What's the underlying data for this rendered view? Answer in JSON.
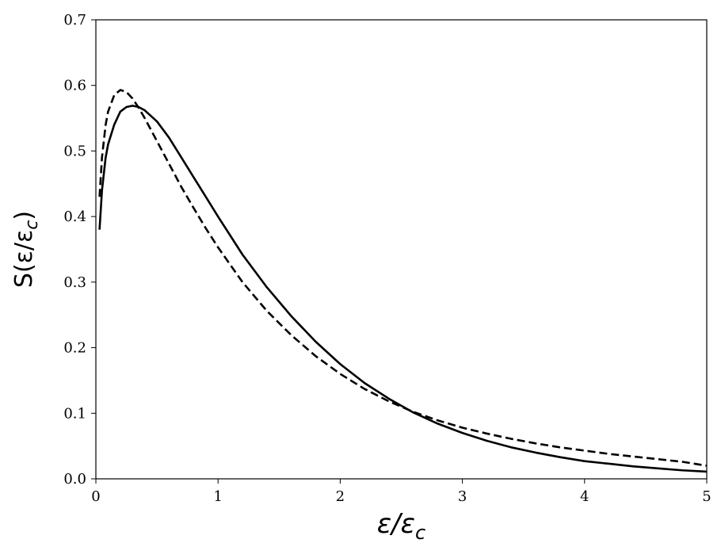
{
  "chart_data": {
    "type": "line",
    "xlabel_main": "ε/ε",
    "xlabel_sub": "c",
    "ylabel_main": "S(ε/ε",
    "ylabel_sub": "c",
    "ylabel_close": ")",
    "xlim": [
      0,
      5
    ],
    "ylim": [
      0,
      0.7
    ],
    "xticks": [
      "0",
      "1",
      "2",
      "3",
      "4",
      "5"
    ],
    "yticks": [
      "0.0",
      "0.1",
      "0.2",
      "0.3",
      "0.4",
      "0.5",
      "0.6",
      "0.7"
    ],
    "grid": false,
    "series": [
      {
        "style": "solid",
        "color": "#000000",
        "x": [
          0.03,
          0.05,
          0.08,
          0.1,
          0.15,
          0.2,
          0.25,
          0.3,
          0.35,
          0.4,
          0.5,
          0.6,
          0.7,
          0.8,
          0.9,
          1.0,
          1.2,
          1.4,
          1.6,
          1.8,
          2.0,
          2.2,
          2.4,
          2.6,
          2.8,
          3.0,
          3.2,
          3.4,
          3.6,
          3.8,
          4.0,
          4.2,
          4.4,
          4.6,
          4.8,
          5.0
        ],
        "y": [
          0.38,
          0.44,
          0.49,
          0.51,
          0.54,
          0.56,
          0.567,
          0.569,
          0.567,
          0.562,
          0.545,
          0.52,
          0.49,
          0.46,
          0.43,
          0.4,
          0.342,
          0.292,
          0.248,
          0.209,
          0.175,
          0.146,
          0.122,
          0.101,
          0.084,
          0.07,
          0.058,
          0.048,
          0.04,
          0.033,
          0.027,
          0.023,
          0.019,
          0.016,
          0.013,
          0.011
        ]
      },
      {
        "style": "dashed",
        "color": "#000000",
        "x": [
          0.03,
          0.05,
          0.08,
          0.1,
          0.15,
          0.2,
          0.25,
          0.3,
          0.35,
          0.4,
          0.5,
          0.6,
          0.7,
          0.8,
          0.9,
          1.0,
          1.2,
          1.4,
          1.6,
          1.8,
          2.0,
          2.2,
          2.4,
          2.6,
          2.8,
          3.0,
          3.2,
          3.4,
          3.6,
          3.8,
          4.0,
          4.2,
          4.4,
          4.6,
          4.8,
          5.0
        ],
        "y": [
          0.43,
          0.49,
          0.54,
          0.56,
          0.585,
          0.593,
          0.59,
          0.58,
          0.566,
          0.55,
          0.515,
          0.48,
          0.445,
          0.413,
          0.382,
          0.353,
          0.3,
          0.256,
          0.219,
          0.187,
          0.16,
          0.137,
          0.118,
          0.102,
          0.089,
          0.078,
          0.069,
          0.061,
          0.054,
          0.048,
          0.043,
          0.038,
          0.034,
          0.03,
          0.026,
          0.02
        ]
      }
    ]
  }
}
